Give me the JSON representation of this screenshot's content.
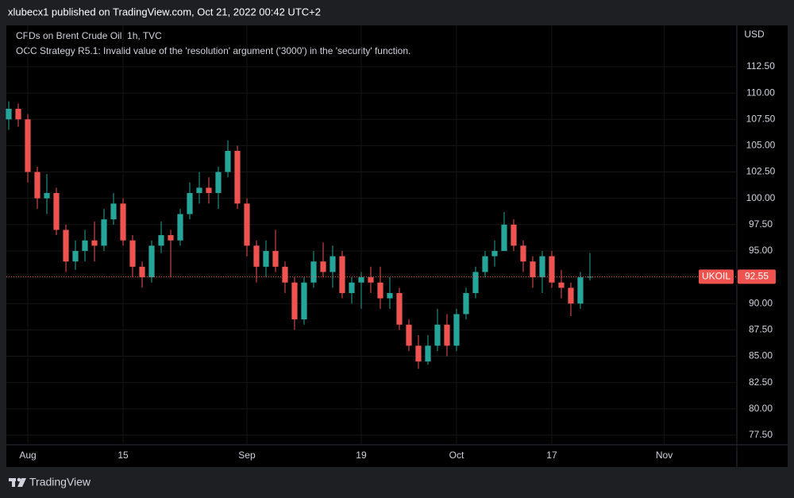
{
  "header": {
    "text": "xlubecx1 published on TradingView.com, Oct 21, 2022 00:42 UTC+2"
  },
  "footer": {
    "brand": "TradingView"
  },
  "chart_data": {
    "type": "candlestick",
    "title": "CFDs on Brent Crude Oil, 1h, TVC",
    "subtitle": "OCC Strategy R5.1: Invalid value of the 'resolution' argument ('3000') in the 'security' function.",
    "y_axis_label": "USD",
    "symbol": "UKOIL",
    "last_price": 92.55,
    "up_color": "#26a69a",
    "down_color": "#ef5350",
    "grid": true,
    "x": [
      -2,
      -1,
      0,
      1,
      2,
      3,
      4,
      5,
      6,
      7,
      8,
      9,
      10,
      11,
      12,
      13,
      14,
      15,
      16,
      17,
      18,
      19,
      20,
      21,
      22,
      23,
      24,
      25,
      26,
      27,
      28,
      29,
      30,
      31,
      32,
      33,
      34,
      35,
      36,
      37,
      38,
      39,
      40,
      41,
      42,
      43,
      44,
      45,
      46,
      47,
      48,
      49,
      50,
      51,
      52,
      53,
      54,
      55,
      56,
      57,
      58,
      59
    ],
    "open": [
      107.5,
      108.5,
      107.5,
      102.5,
      100,
      100.5,
      97,
      94,
      95,
      96,
      95.5,
      98,
      99.5,
      96,
      93.5,
      92.5,
      95.5,
      96.5,
      96,
      98.5,
      100.5,
      101,
      100.5,
      102.5,
      104.5,
      99.5,
      95.5,
      93.5,
      95,
      93.5,
      92,
      88.5,
      92,
      94,
      93,
      94.5,
      91,
      92,
      92.5,
      92,
      90.5,
      91,
      88,
      86,
      84.5,
      86,
      88,
      86,
      89,
      91,
      93,
      94.5,
      95,
      97.5,
      95.5,
      94,
      92.5,
      94.5,
      92,
      91.5,
      90,
      92.5
    ],
    "high": [
      109.2,
      109,
      108,
      103,
      102.3,
      101,
      97.5,
      96,
      97,
      97.8,
      99,
      100.5,
      100,
      96.5,
      94,
      96,
      97.8,
      97,
      99,
      101.5,
      102.5,
      102,
      103,
      105.5,
      105,
      100,
      96,
      96,
      97,
      94,
      92.5,
      92.5,
      95,
      95.8,
      95.5,
      95,
      92.5,
      93,
      93.5,
      93.5,
      92.5,
      91.5,
      88.5,
      87,
      87,
      89.5,
      89,
      89.5,
      91.5,
      93.5,
      95,
      96,
      98.7,
      98,
      96,
      94.5,
      95,
      95,
      93.2,
      92,
      93,
      94.8
    ],
    "low": [
      106.5,
      106.8,
      101.5,
      99,
      98.5,
      96.5,
      93,
      93.2,
      94,
      94,
      95,
      97.5,
      95.5,
      92.5,
      91.5,
      92,
      94.8,
      92.5,
      95.5,
      98,
      99.5,
      99.5,
      99,
      102,
      99,
      94.5,
      92,
      92.5,
      93,
      91,
      87.5,
      88,
      91.5,
      92.5,
      91.5,
      90.5,
      90,
      89.5,
      91,
      89.5,
      89.5,
      87.5,
      85.5,
      83.8,
      84.2,
      85.5,
      85,
      85.5,
      88.5,
      90.5,
      92.5,
      93.5,
      95,
      95,
      93,
      91.5,
      91,
      91.5,
      90.5,
      88.8,
      89.5,
      92.2
    ],
    "close": [
      108.5,
      107.5,
      102.5,
      100,
      100.5,
      97,
      94,
      95,
      96,
      95.5,
      98,
      99.5,
      96,
      93.5,
      92.5,
      95.5,
      96.5,
      96,
      98.5,
      100.5,
      101,
      100.5,
      102.5,
      104.5,
      99.5,
      95.5,
      93.5,
      95,
      93.5,
      92,
      88.5,
      92,
      94,
      93,
      94.5,
      91,
      92,
      92.5,
      92,
      90.5,
      91,
      88,
      86,
      84.5,
      86,
      88,
      86,
      89,
      91,
      93,
      94.5,
      95,
      97.5,
      95.5,
      94,
      92.5,
      94.5,
      92,
      91.5,
      90,
      92.5,
      92.55
    ],
    "xlim": [
      -2.25,
      74.42
    ],
    "xticks": [
      {
        "value": 0,
        "label": "Aug"
      },
      {
        "value": 10,
        "label": "15"
      },
      {
        "value": 23,
        "label": "Sep"
      },
      {
        "value": 35,
        "label": "19"
      },
      {
        "value": 45,
        "label": "Oct"
      },
      {
        "value": 55,
        "label": "17"
      },
      {
        "value": 66.8,
        "label": "Nov"
      }
    ],
    "ylim": [
      76.59,
      116.42
    ],
    "yticks": [
      {
        "value": 77.5,
        "label": "77.50"
      },
      {
        "value": 80,
        "label": "80.00"
      },
      {
        "value": 82.5,
        "label": "82.50"
      },
      {
        "value": 85,
        "label": "85.00"
      },
      {
        "value": 87.5,
        "label": "87.50"
      },
      {
        "value": 90,
        "label": "90.00"
      },
      92.5,
      {
        "value": 95,
        "label": "95.00"
      },
      {
        "value": 97.5,
        "label": "97.50"
      },
      {
        "value": 100,
        "label": "100.00"
      },
      {
        "value": 102.5,
        "label": "102.50"
      },
      {
        "value": 105,
        "label": "105.00"
      },
      {
        "value": 107.5,
        "label": "107.50"
      },
      {
        "value": 110,
        "label": "110.00"
      },
      {
        "value": 112.5,
        "label": "112.50"
      }
    ]
  }
}
